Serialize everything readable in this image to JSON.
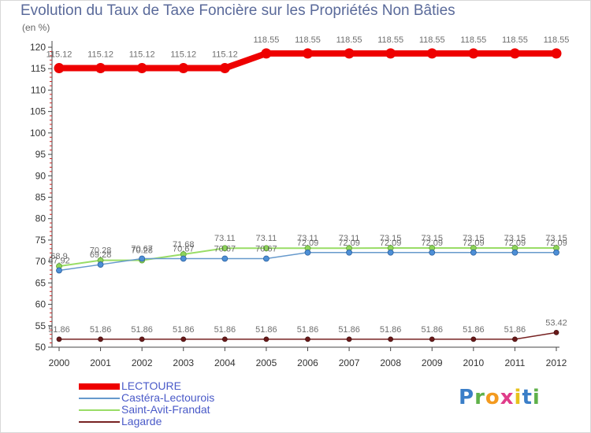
{
  "chart_data": {
    "type": "line",
    "title": "Evolution du Taux de Taxe Foncière sur les Propriétés Non Bâties",
    "unit_label": "(en %)",
    "xlabel": "",
    "ylabel": "",
    "ylim": [
      50,
      120
    ],
    "y_ticks": [
      50,
      55,
      60,
      65,
      70,
      75,
      80,
      85,
      90,
      95,
      100,
      105,
      110,
      115,
      120
    ],
    "x": [
      "2000",
      "2001",
      "2002",
      "2003",
      "2004",
      "2005",
      "2006",
      "2007",
      "2008",
      "2009",
      "2010",
      "2011",
      "2012"
    ],
    "grid": false,
    "legend_position": "bottom-left",
    "series": [
      {
        "name": "LECTOURE",
        "color": "#ee0000",
        "values": [
          115.12,
          115.12,
          115.12,
          115.12,
          115.12,
          118.55,
          118.55,
          118.55,
          118.55,
          118.55,
          118.55,
          118.55,
          118.55
        ],
        "labels": [
          "115.12",
          "115.12",
          "115.12",
          "115.12",
          "115.12",
          "118.55",
          "118.55",
          "118.55",
          "118.55",
          "118.55",
          "118.55",
          "118.55",
          "118.55"
        ]
      },
      {
        "name": "Castéra-Lectourois",
        "color": "#6699cc",
        "values": [
          67.92,
          69.28,
          70.67,
          70.67,
          70.67,
          70.67,
          72.09,
          72.09,
          72.09,
          72.09,
          72.09,
          72.09,
          72.09
        ],
        "labels": [
          "67.92",
          "69.28",
          "70.67",
          "70.67",
          "70.67",
          "70.67",
          "72.09",
          "72.09",
          "72.09",
          "72.09",
          "72.09",
          "72.09",
          "72.09"
        ]
      },
      {
        "name": "Saint-Avit-Frandat",
        "color": "#99dd66",
        "values": [
          68.9,
          70.28,
          70.28,
          71.68,
          73.11,
          73.11,
          73.11,
          73.11,
          73.15,
          73.15,
          73.15,
          73.15,
          73.15
        ],
        "labels": [
          "68.9",
          "70.28",
          "70.28",
          "71.68",
          "73.11",
          "73.11",
          "73.11",
          "73.11",
          "73.15",
          "73.15",
          "73.15",
          "73.15",
          "73.15"
        ]
      },
      {
        "name": "Lagarde",
        "color": "#772222",
        "values": [
          51.86,
          51.86,
          51.86,
          51.86,
          51.86,
          51.86,
          51.86,
          51.86,
          51.86,
          51.86,
          51.86,
          51.86,
          53.42
        ],
        "labels": [
          "51.86",
          "51.86",
          "51.86",
          "51.86",
          "51.86",
          "51.86",
          "51.86",
          "51.86",
          "51.86",
          "51.86",
          "51.86",
          "51.86",
          "53.42"
        ]
      }
    ]
  },
  "logo": {
    "text": "Proxiti"
  }
}
